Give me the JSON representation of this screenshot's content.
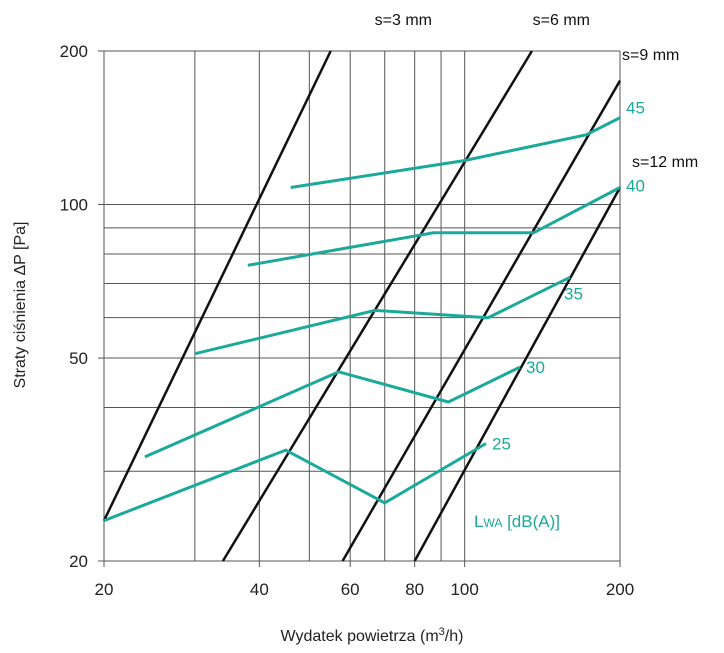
{
  "colors": {
    "teal": "#1aa99a",
    "slot_line": "#111111",
    "grid": "#555555"
  },
  "chart_data": {
    "type": "line",
    "x_scale": "log",
    "y_scale": "log",
    "xlim": [
      20,
      200
    ],
    "ylim": [
      20,
      200
    ],
    "x_ticks": [
      20,
      40,
      60,
      80,
      100,
      200
    ],
    "y_ticks": [
      20,
      50,
      100,
      200
    ],
    "x_grid": [
      30,
      40,
      50,
      60,
      70,
      80,
      90,
      100
    ],
    "y_grid": [
      30,
      40,
      50,
      60,
      70,
      80,
      90,
      100
    ],
    "xlabel": "Wydatek powietrza (m",
    "xlabel_sup": "3",
    "xlabel_tail": "/h)",
    "ylabel": "Straty ciśnienia ΔP [Pa]",
    "legend_text": {
      "main": "L",
      "sub": "WA",
      "tail": " [dB(A)]"
    },
    "slot_lines": [
      {
        "name": "s=3 mm",
        "points": [
          [
            20,
            24
          ],
          [
            55,
            200
          ]
        ]
      },
      {
        "name": "s=6 mm",
        "points": [
          [
            34,
            20
          ],
          [
            135,
            200
          ]
        ]
      },
      {
        "name": "s=9 mm",
        "points": [
          [
            58,
            20
          ],
          [
            200,
            175
          ]
        ]
      },
      {
        "name": "s=12 mm",
        "points": [
          [
            80,
            20
          ],
          [
            200,
            108
          ]
        ]
      }
    ],
    "series": [
      {
        "name": "45",
        "points": [
          [
            46,
            108
          ],
          [
            100,
            122
          ],
          [
            172,
            137
          ],
          [
            200,
            148
          ]
        ]
      },
      {
        "name": "40",
        "points": [
          [
            38,
            76
          ],
          [
            87,
            88
          ],
          [
            136,
            88
          ],
          [
            200,
            108
          ]
        ]
      },
      {
        "name": "35",
        "points": [
          [
            30,
            51
          ],
          [
            67,
            62
          ],
          [
            111,
            60
          ],
          [
            160,
            72
          ]
        ]
      },
      {
        "name": "30",
        "points": [
          [
            24,
            32
          ],
          [
            57,
            47
          ],
          [
            93,
            41
          ],
          [
            128,
            48
          ]
        ]
      },
      {
        "name": "25",
        "points": [
          [
            20,
            24
          ],
          [
            45,
            33
          ],
          [
            70,
            26
          ],
          [
            110,
            34
          ]
        ]
      }
    ]
  }
}
